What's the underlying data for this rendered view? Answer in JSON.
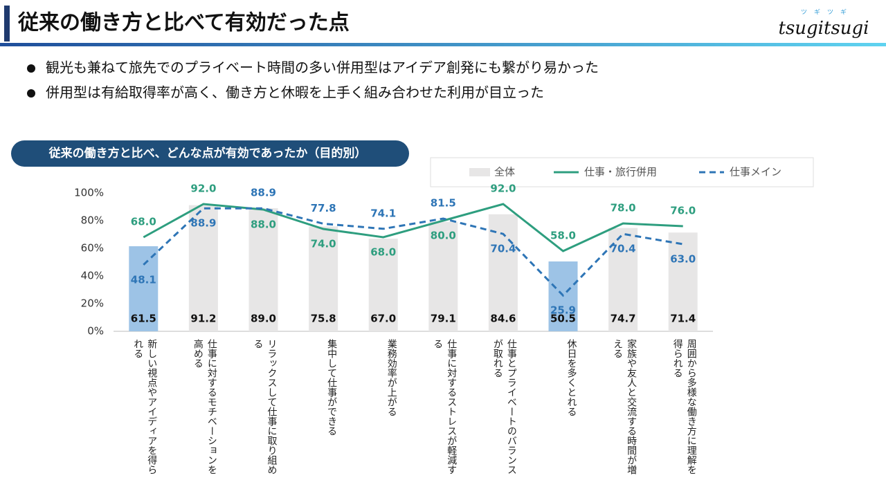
{
  "header": {
    "title": "従来の働き方と比べて有効だった点",
    "logo": "tsugitsugi",
    "logo_kana": "ツギツギ"
  },
  "bullets": [
    "観光も兼ねて旅先でのプライベート時間の多い併用型はアイデア創発にも繋がり易かった",
    "併用型は有給取得率が高く、働き方と休暇を上手く組み合わせた利用が目立った"
  ],
  "chart_data": {
    "type": "bar_line",
    "title": "従来の働き方と比べ、どんな点が有効であったか（目的別）",
    "categories": [
      "新しい視点やアイディアを得られる",
      "仕事に対するモチベーションを高める",
      "リラックスして仕事に取り組める",
      "集中して仕事ができる",
      "業務効率が上がる",
      "仕事に対するストレスが軽減する",
      "仕事とプライベートのバランスが取れる",
      "休日を多くとれる",
      "家族や友人と交流する時間が増える",
      "周囲から多様な働き方に理解を得られる"
    ],
    "series": [
      {
        "name": "全体",
        "type": "bar",
        "color": "#e7e6e6",
        "colors": [
          "#9dc3e6",
          "#e7e6e6",
          "#e7e6e6",
          "#e7e6e6",
          "#e7e6e6",
          "#e7e6e6",
          "#e7e6e6",
          "#9dc3e6",
          "#e7e6e6",
          "#e7e6e6"
        ],
        "values": [
          61.5,
          91.2,
          89.0,
          75.8,
          67.0,
          79.1,
          84.6,
          50.5,
          74.7,
          71.4
        ],
        "value_labels": [
          "61.5",
          "91.2",
          "89.0",
          "75.8",
          "67.0",
          "79.1",
          "84.6",
          "50.5",
          "74.7",
          "71.4"
        ]
      },
      {
        "name": "仕事・旅行併用",
        "type": "line",
        "color": "#2e9e7f",
        "dash": false,
        "values": [
          68.0,
          92.0,
          88.0,
          74.0,
          68.0,
          80.0,
          92.0,
          58.0,
          78.0,
          76.0
        ],
        "value_labels": [
          "68.0",
          "92.0",
          "88.0",
          "74.0",
          "68.0",
          "80.0",
          "92.0",
          "58.0",
          "78.0",
          "76.0"
        ]
      },
      {
        "name": "仕事メイン",
        "type": "line",
        "color": "#2e75b6",
        "dash": true,
        "values": [
          48.1,
          88.9,
          88.9,
          77.8,
          74.1,
          81.5,
          70.4,
          25.9,
          70.4,
          63.0
        ],
        "value_labels": [
          "48.1",
          "88.9",
          "88.9",
          "77.8",
          "74.1",
          "81.5",
          "70.4",
          "25.9",
          "70.4",
          "63.0"
        ]
      }
    ],
    "ylim": [
      0,
      100
    ],
    "yticks": [
      {
        "value": 0,
        "label": "0%"
      },
      {
        "value": 20,
        "label": "20%"
      },
      {
        "value": 40,
        "label": "40%"
      },
      {
        "value": 60,
        "label": "60%"
      },
      {
        "value": 80,
        "label": "80%"
      },
      {
        "value": 100,
        "label": "100%"
      }
    ]
  }
}
